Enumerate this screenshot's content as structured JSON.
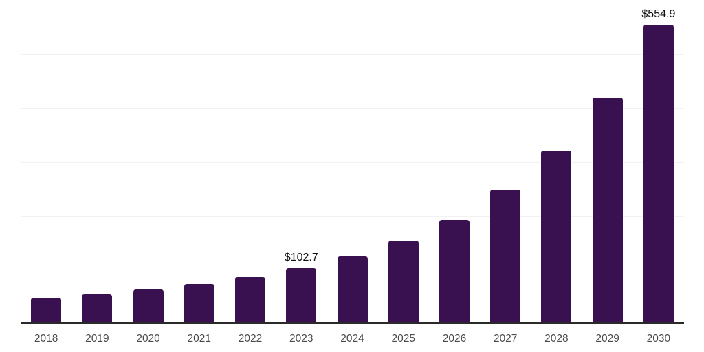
{
  "chart_data": {
    "type": "bar",
    "title": "",
    "xlabel": "",
    "ylabel": "",
    "categories": [
      "2018",
      "2019",
      "2020",
      "2021",
      "2022",
      "2023",
      "2024",
      "2025",
      "2026",
      "2027",
      "2028",
      "2029",
      "2030"
    ],
    "values": [
      47,
      54,
      63,
      73,
      86,
      102.7,
      124,
      154,
      192,
      248,
      321,
      419,
      554.9
    ],
    "data_labels": {
      "2023": "$102.7",
      "2030": "$554.9"
    },
    "ylim": [
      0,
      600
    ],
    "grid_step": 100,
    "grid": "on",
    "legend": "none",
    "y_tick_labels": "none",
    "colors": {
      "bar": "#3a1150",
      "gridline": "#f2f2f2",
      "axis_line": "#2a2a2a",
      "x_label_text": "#4a4a4a",
      "data_label_text": "#111111",
      "background": "#ffffff"
    }
  }
}
